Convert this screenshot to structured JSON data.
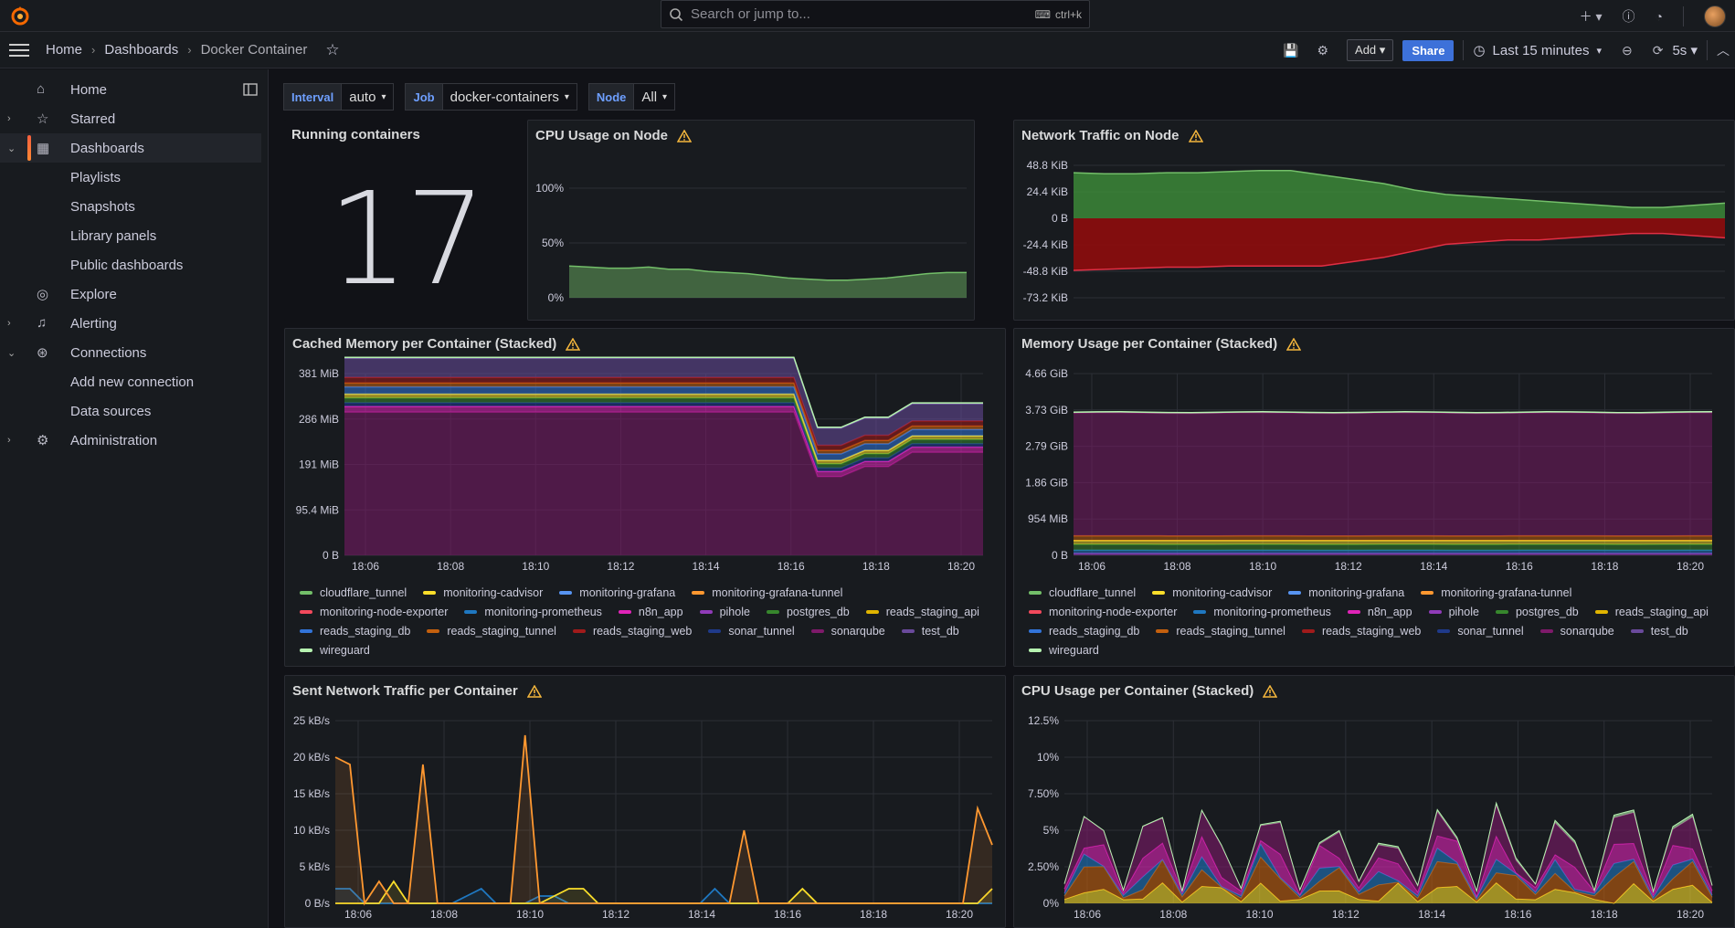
{
  "search": {
    "placeholder": "Search or jump to...",
    "shortcut": "ctrl+k"
  },
  "breadcrumb": {
    "home": "Home",
    "dashboards": "Dashboards",
    "current": "Docker Container"
  },
  "toolbar": {
    "add": "Add",
    "share": "Share",
    "time_range": "Last 15 minutes",
    "refresh": "5s"
  },
  "sidebar": {
    "items": [
      {
        "label": "Home",
        "icon": "home-icon"
      },
      {
        "label": "Starred",
        "icon": "star-icon"
      },
      {
        "label": "Dashboards",
        "icon": "dashboards-icon"
      },
      {
        "label": "Playlists"
      },
      {
        "label": "Snapshots"
      },
      {
        "label": "Library panels"
      },
      {
        "label": "Public dashboards"
      },
      {
        "label": "Explore",
        "icon": "compass-icon"
      },
      {
        "label": "Alerting",
        "icon": "bell-icon"
      },
      {
        "label": "Connections",
        "icon": "connections-icon"
      },
      {
        "label": "Add new connection"
      },
      {
        "label": "Data sources"
      },
      {
        "label": "Administration",
        "icon": "gear-icon"
      }
    ]
  },
  "variables": [
    {
      "label": "Interval",
      "value": "auto"
    },
    {
      "label": "Job",
      "value": "docker-containers"
    },
    {
      "label": "Node",
      "value": "All"
    }
  ],
  "panels": {
    "running": {
      "title": "Running containers",
      "value": "17"
    },
    "cpu_node": {
      "title": "CPU Usage on Node",
      "yticks": [
        "100%",
        "50%",
        "0%"
      ]
    },
    "net_node": {
      "title": "Network Traffic on Node",
      "yticks": [
        "48.8 KiB",
        "24.4 KiB",
        "0 B",
        "-24.4 KiB",
        "-48.8 KiB",
        "-73.2 KiB"
      ]
    },
    "cached_mem": {
      "title": "Cached Memory per Container (Stacked)",
      "yticks": [
        "381 MiB",
        "286 MiB",
        "191 MiB",
        "95.4 MiB",
        "0 B"
      ]
    },
    "mem_usage": {
      "title": "Memory Usage per Container (Stacked)",
      "yticks": [
        "4.66 GiB",
        "3.73 GiB",
        "2.79 GiB",
        "1.86 GiB",
        "954 MiB",
        "0 B"
      ]
    },
    "sent_net": {
      "title": "Sent Network Traffic per Container",
      "yticks": [
        "25 kB/s",
        "20 kB/s",
        "15 kB/s",
        "10 kB/s",
        "5 kB/s",
        "0 B/s"
      ]
    },
    "cpu_container": {
      "title": "CPU Usage per Container (Stacked)",
      "yticks": [
        "12.5%",
        "10%",
        "7.50%",
        "5%",
        "2.50%",
        "0%"
      ]
    }
  },
  "xticks": [
    "18:06",
    "18:08",
    "18:10",
    "18:12",
    "18:14",
    "18:16",
    "18:18",
    "18:20"
  ],
  "legend": [
    {
      "name": "cloudflare_tunnel",
      "color": "#73bf69"
    },
    {
      "name": "monitoring-cadvisor",
      "color": "#fade2a"
    },
    {
      "name": "monitoring-grafana",
      "color": "#5794f2"
    },
    {
      "name": "monitoring-grafana-tunnel",
      "color": "#ff9830"
    },
    {
      "name": "monitoring-node-exporter",
      "color": "#f2495c"
    },
    {
      "name": "monitoring-prometheus",
      "color": "#1f78c1"
    },
    {
      "name": "n8n_app",
      "color": "#e024b8"
    },
    {
      "name": "pihole",
      "color": "#8f3bb8"
    },
    {
      "name": "postgres_db",
      "color": "#37872d"
    },
    {
      "name": "reads_staging_api",
      "color": "#e0b400"
    },
    {
      "name": "reads_staging_db",
      "color": "#3274d9"
    },
    {
      "name": "reads_staging_tunnel",
      "color": "#c4600e"
    },
    {
      "name": "reads_staging_web",
      "color": "#a11b1b"
    },
    {
      "name": "sonar_tunnel",
      "color": "#1f3a8a"
    },
    {
      "name": "sonarqube",
      "color": "#7e1a6a"
    },
    {
      "name": "test_db",
      "color": "#6a4a9c"
    },
    {
      "name": "wireguard",
      "color": "#b6f2b0"
    }
  ]
}
